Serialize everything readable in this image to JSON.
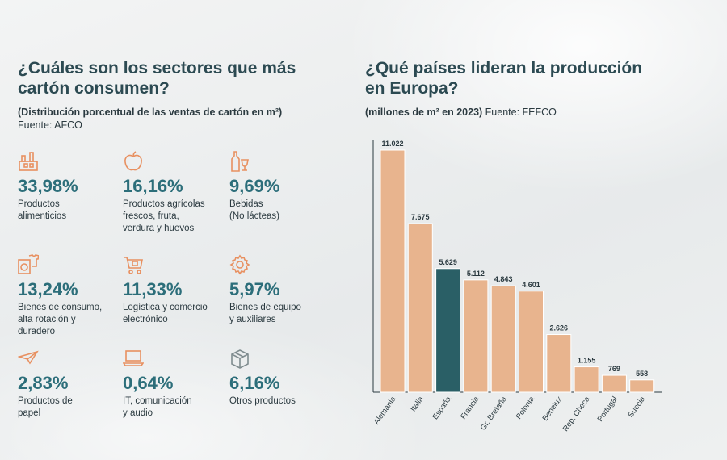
{
  "left": {
    "title": "¿Cuáles son los sectores que más\ncartón consumen?",
    "subtitle_bold": "(Distribución porcentual de las ventas de cartón en m²)",
    "source": "Fuente: AFCO",
    "sectors": [
      {
        "icon": "factory-icon",
        "pct": "33,98%",
        "label": "Productos\nalimenticios"
      },
      {
        "icon": "apple-icon",
        "pct": "16,16%",
        "label": "Productos agrícolas\nfrescos, fruta,\nverdura y huevos"
      },
      {
        "icon": "bottle-glass-icon",
        "pct": "9,69%",
        "label": "Bebidas\n(No lácteas)"
      },
      {
        "icon": "washer-shirt-icon",
        "pct": "13,24%",
        "label": "Bienes de consumo,\nalta rotación y\nduradero"
      },
      {
        "icon": "shopping-cart-icon",
        "pct": "11,33%",
        "label": "Logística y comercio\nelectrónico"
      },
      {
        "icon": "gear-icon",
        "pct": "5,97%",
        "label": "Bienes de equipo\ny auxiliares"
      },
      {
        "icon": "paper-plane-icon",
        "pct": "2,83%",
        "label": "Productos de\npapel"
      },
      {
        "icon": "laptop-icon",
        "pct": "0,64%",
        "label": "IT, comunicación\ny audio"
      },
      {
        "icon": "box-icon",
        "pct": "6,16%",
        "label": "Otros productos"
      }
    ]
  },
  "right": {
    "title": "¿Qué países lideran la producción\nen Europa?",
    "subtitle_bold": "(millones de m² en 2023)",
    "source": "Fuente: FEFCO"
  },
  "colors": {
    "accent_orange": "#e89060",
    "bar_fill": "#e8b48e",
    "bar_stroke": "#ffffff",
    "highlight_bar": "#2a5f66",
    "title": "#2c4a52",
    "pct_text": "#2c6e7a"
  },
  "chart_data": {
    "type": "bar",
    "categories": [
      "Alemania",
      "Italia",
      "España",
      "Francia",
      "Gr. Bretaña",
      "Polonia",
      "Benelux",
      "Rep. Checa",
      "Portugal",
      "Suecia"
    ],
    "values": [
      11022,
      7675,
      5629,
      5112,
      4843,
      4601,
      2626,
      1155,
      769,
      558
    ],
    "value_labels": [
      "11.022",
      "7.675",
      "5.629",
      "5.112",
      "4.843",
      "4.601",
      "2.626",
      "1.155",
      "769",
      "558"
    ],
    "highlight": "España",
    "ylim": [
      0,
      11022
    ],
    "grid": false,
    "legend": "none"
  }
}
